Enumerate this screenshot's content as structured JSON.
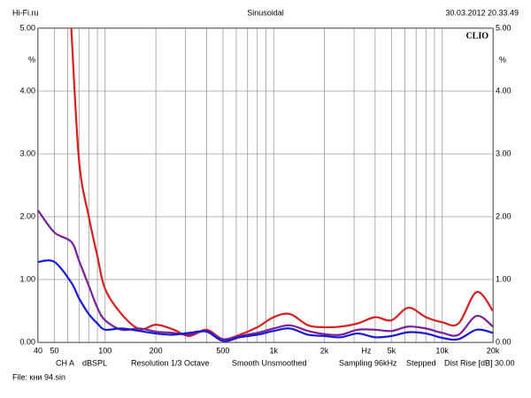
{
  "chart_data": {
    "type": "line",
    "header_left": "Hi-Fi.ru",
    "header_center": "Sinusoidal",
    "header_right": "30.03.2012 20.33.49",
    "brand": "CLIO",
    "y_unit": "%",
    "x_unit": "Hz",
    "footer_items": [
      "CH A",
      "dBSPL",
      "Resolution 1/3 Octave",
      "Smooth Unsmoothed",
      "Sampling 96kHz",
      "Stepped",
      "Dist Rise [dB] 30.00"
    ],
    "file_label": "File: кни 94.sin",
    "x": [
      40,
      50,
      63,
      70,
      80,
      90,
      100,
      125,
      160,
      200,
      250,
      315,
      400,
      500,
      630,
      800,
      1000,
      1250,
      1600,
      2000,
      2500,
      3150,
      4000,
      5000,
      6300,
      8000,
      10000,
      12500,
      16000,
      20000
    ],
    "series": [
      {
        "color": "#d81e1e",
        "values": [
          null,
          null,
          5.0,
          2.9,
          2.0,
          1.37,
          0.85,
          0.45,
          0.21,
          0.28,
          0.21,
          0.1,
          0.2,
          0.05,
          0.12,
          0.24,
          0.4,
          0.45,
          0.27,
          0.24,
          0.25,
          0.3,
          0.4,
          0.35,
          0.55,
          0.4,
          0.32,
          0.3,
          0.8,
          0.5
        ]
      },
      {
        "color": "#7a1e9a",
        "values": [
          2.1,
          1.75,
          1.6,
          1.3,
          0.9,
          0.55,
          0.35,
          0.2,
          0.22,
          0.17,
          0.15,
          0.12,
          0.18,
          0.05,
          0.1,
          0.15,
          0.22,
          0.27,
          0.18,
          0.13,
          0.12,
          0.2,
          0.2,
          0.18,
          0.25,
          0.22,
          0.15,
          0.12,
          0.42,
          0.25
        ]
      },
      {
        "color": "#1a1ad0",
        "values": [
          1.28,
          1.28,
          0.95,
          0.7,
          0.45,
          0.3,
          0.2,
          0.22,
          0.18,
          0.14,
          0.12,
          0.15,
          0.17,
          0.02,
          0.08,
          0.12,
          0.18,
          0.22,
          0.12,
          0.1,
          0.08,
          0.14,
          0.08,
          0.1,
          0.16,
          0.14,
          0.07,
          0.05,
          0.2,
          0.15
        ]
      }
    ],
    "xscale": "log",
    "xlim": [
      40,
      20000
    ],
    "xticks": [
      40,
      50,
      100,
      200,
      500,
      {
        "value": 1000,
        "label": "1k"
      },
      {
        "value": 2000,
        "label": "2k"
      },
      {
        "value": 5000,
        "label": "5k"
      },
      {
        "value": 10000,
        "label": "10k"
      },
      {
        "value": 20000,
        "label": "20k"
      }
    ],
    "x_minor_ticks": [
      60,
      70,
      80,
      90,
      300,
      400,
      600,
      700,
      800,
      900,
      3000,
      4000,
      6000,
      7000,
      8000,
      9000
    ],
    "ylim": [
      0,
      5
    ],
    "yticks": [
      {
        "value": 0,
        "label": "0.00"
      },
      {
        "value": 1,
        "label": "1.00"
      },
      {
        "value": 2,
        "label": "2.00"
      },
      {
        "value": 3,
        "label": "3.00"
      },
      {
        "value": 4,
        "label": "4.00"
      },
      {
        "value": 5,
        "label": "5.00"
      }
    ],
    "grid": true
  }
}
